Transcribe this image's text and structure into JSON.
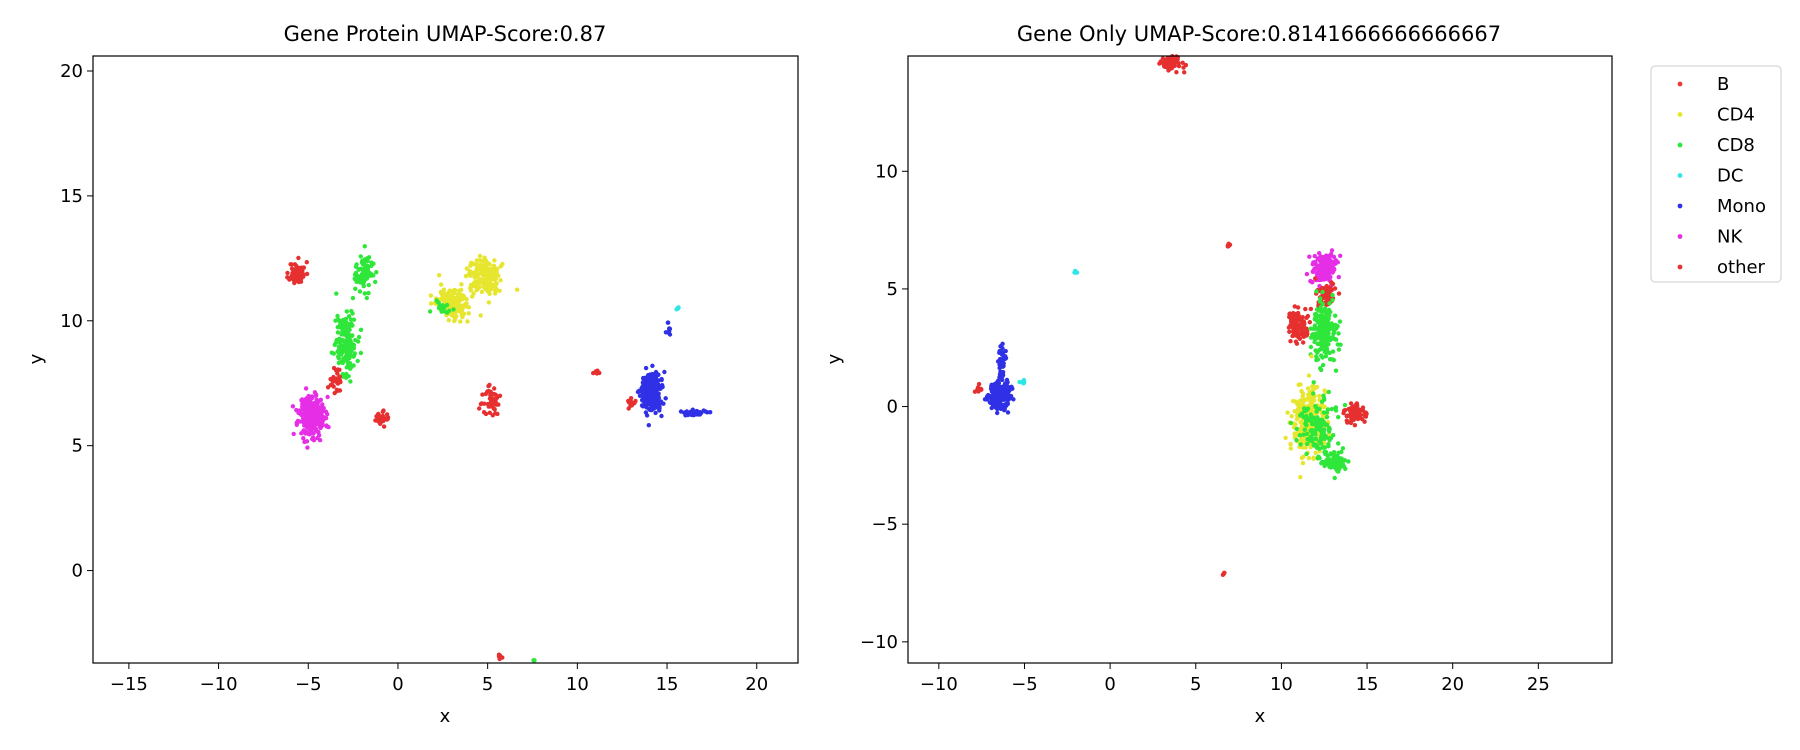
{
  "chart_data": [
    {
      "type": "scatter",
      "title": "Gene Protein UMAP-Score:0.87",
      "xlabel": "x",
      "ylabel": "y",
      "xlim": [
        -17,
        22.3
      ],
      "ylim": [
        -3.7,
        20.6
      ],
      "xticks": [
        -15,
        -10,
        -5,
        0,
        5,
        10,
        15,
        20
      ],
      "yticks": [
        0,
        5,
        10,
        15,
        20
      ],
      "xtick_labels": [
        "−15",
        "−10",
        "−5",
        "0",
        "5",
        "10",
        "15",
        "20"
      ],
      "ytick_labels": [
        "0",
        "5",
        "10",
        "15",
        "20"
      ],
      "grid": false,
      "clusters": [
        {
          "label": "other",
          "cx": -5.6,
          "cy": 11.9,
          "rx": 0.45,
          "ry": 0.45,
          "n": 70
        },
        {
          "label": "NK",
          "cx": -4.8,
          "cy": 6.2,
          "rx": 0.75,
          "ry": 0.85,
          "n": 240
        },
        {
          "label": "CD8",
          "cx": -2.9,
          "cy": 9.2,
          "rx": 0.6,
          "ry": 1.3,
          "n": 170
        },
        {
          "label": "CD8",
          "cx": -1.9,
          "cy": 11.9,
          "rx": 0.45,
          "ry": 0.7,
          "n": 90
        },
        {
          "label": "other",
          "cx": -3.4,
          "cy": 7.6,
          "rx": 0.35,
          "ry": 0.45,
          "n": 30
        },
        {
          "label": "other",
          "cx": -0.9,
          "cy": 6.1,
          "rx": 0.35,
          "ry": 0.3,
          "n": 30
        },
        {
          "label": "CD4",
          "cx": 4.8,
          "cy": 11.8,
          "rx": 0.8,
          "ry": 0.7,
          "n": 180
        },
        {
          "label": "CD4",
          "cx": 3.1,
          "cy": 10.7,
          "rx": 1.0,
          "ry": 0.6,
          "n": 160
        },
        {
          "label": "CD8",
          "cx": 2.4,
          "cy": 10.5,
          "rx": 0.6,
          "ry": 0.4,
          "n": 20
        },
        {
          "label": "other",
          "cx": 5.2,
          "cy": 6.8,
          "rx": 0.5,
          "ry": 0.5,
          "n": 45
        },
        {
          "label": "Mono",
          "cx": 14.1,
          "cy": 7.1,
          "rx": 0.55,
          "ry": 0.8,
          "n": 260
        },
        {
          "label": "Mono",
          "cx": 16.5,
          "cy": 6.3,
          "rx": 0.8,
          "ry": 0.12,
          "n": 40
        },
        {
          "label": "other",
          "cx": 13.0,
          "cy": 6.7,
          "rx": 0.2,
          "ry": 0.2,
          "n": 15
        },
        {
          "label": "Mono",
          "cx": 15.1,
          "cy": 9.6,
          "rx": 0.15,
          "ry": 0.35,
          "n": 10
        },
        {
          "label": "DC",
          "cx": 15.6,
          "cy": 10.5,
          "rx": 0.1,
          "ry": 0.1,
          "n": 5
        },
        {
          "label": "other",
          "cx": 11.1,
          "cy": 7.9,
          "rx": 0.15,
          "ry": 0.1,
          "n": 6
        },
        {
          "label": "other",
          "cx": 5.7,
          "cy": -3.4,
          "rx": 0.1,
          "ry": 0.15,
          "n": 5
        },
        {
          "label": "CD8",
          "cx": 7.6,
          "cy": -3.6,
          "rx": 0.1,
          "ry": 0.08,
          "n": 3
        }
      ]
    },
    {
      "type": "scatter",
      "title": "Gene Only UMAP-Score:0.8141666666666667",
      "xlabel": "x",
      "ylabel": "y",
      "xlim": [
        -11.8,
        29.3
      ],
      "ylim": [
        -10.9,
        14.9
      ],
      "xticks": [
        -10,
        -5,
        0,
        5,
        10,
        15,
        20,
        25
      ],
      "yticks": [
        -10,
        -5,
        0,
        5,
        10
      ],
      "xtick_labels": [
        "−10",
        "−5",
        "0",
        "5",
        "10",
        "15",
        "20",
        "25"
      ],
      "ytick_labels": [
        "−10",
        "−5",
        "0",
        "5",
        "10"
      ],
      "grid": false,
      "legend_placement": "outside upper right",
      "legend": [
        "B",
        "CD4",
        "CD8",
        "DC",
        "Mono",
        "NK",
        "other"
      ],
      "clusters": [
        {
          "label": "other",
          "cx": 3.5,
          "cy": 14.6,
          "rx": 0.7,
          "ry": 0.3,
          "n": 60
        },
        {
          "label": "Mono",
          "cx": -6.5,
          "cy": 0.5,
          "rx": 0.6,
          "ry": 0.6,
          "n": 200
        },
        {
          "label": "Mono",
          "cx": -6.3,
          "cy": 2.0,
          "rx": 0.25,
          "ry": 0.8,
          "n": 40
        },
        {
          "label": "DC",
          "cx": -5.2,
          "cy": 1.0,
          "rx": 0.2,
          "ry": 0.15,
          "n": 6
        },
        {
          "label": "other",
          "cx": -7.7,
          "cy": 0.7,
          "rx": 0.2,
          "ry": 0.15,
          "n": 8
        },
        {
          "label": "DC",
          "cx": -2.0,
          "cy": 5.7,
          "rx": 0.1,
          "ry": 0.1,
          "n": 4
        },
        {
          "label": "NK",
          "cx": 12.5,
          "cy": 5.9,
          "rx": 0.75,
          "ry": 0.7,
          "n": 150
        },
        {
          "label": "other",
          "cx": 11.0,
          "cy": 3.4,
          "rx": 0.6,
          "ry": 0.7,
          "n": 120
        },
        {
          "label": "other",
          "cx": 12.6,
          "cy": 4.8,
          "rx": 0.6,
          "ry": 0.5,
          "n": 70
        },
        {
          "label": "CD8",
          "cx": 12.5,
          "cy": 3.2,
          "rx": 0.7,
          "ry": 1.2,
          "n": 200
        },
        {
          "label": "CD4",
          "cx": 11.6,
          "cy": -0.7,
          "rx": 1.0,
          "ry": 1.4,
          "n": 280
        },
        {
          "label": "CD8",
          "cx": 12.2,
          "cy": -1.0,
          "rx": 1.2,
          "ry": 1.4,
          "n": 150
        },
        {
          "label": "CD8",
          "cx": 13.2,
          "cy": -2.4,
          "rx": 0.6,
          "ry": 0.4,
          "n": 80
        },
        {
          "label": "other",
          "cx": 14.3,
          "cy": -0.3,
          "rx": 0.6,
          "ry": 0.4,
          "n": 80
        },
        {
          "label": "other",
          "cx": 6.9,
          "cy": 6.8,
          "rx": 0.1,
          "ry": 0.1,
          "n": 5
        },
        {
          "label": "other",
          "cx": 6.6,
          "cy": -7.1,
          "rx": 0.08,
          "ry": 0.08,
          "n": 4
        }
      ]
    }
  ],
  "category_colors": {
    "B": "#e93a3a",
    "CD4": "#e6e62e",
    "CD8": "#2fe63a",
    "DC": "#2ee6e6",
    "Mono": "#3030e6",
    "NK": "#e62ee6",
    "other": "#e63030"
  }
}
